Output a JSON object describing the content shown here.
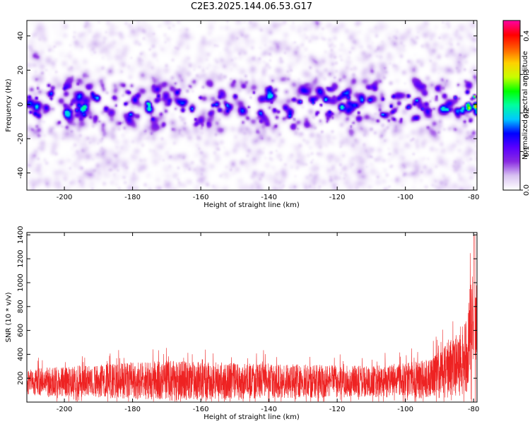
{
  "page_title": "C2E3.2025.144.06.53.G17",
  "colors": {
    "background": "#ffffff",
    "axis": "#000000",
    "snr_line": "#ee2222",
    "colormap": [
      "#ffffff",
      "#d9c2f2",
      "#8a2be2",
      "#5a00ff",
      "#0000ff",
      "#00c8ff",
      "#00ffa0",
      "#00ff00",
      "#c8ff00",
      "#ffd200",
      "#ff6000",
      "#ff0000",
      "#ff00a0"
    ]
  },
  "chart_data": [
    {
      "type": "heatmap",
      "title": "C2E3.2025.144.06.53.G17",
      "xlabel": "Height of straight line (km)",
      "ylabel": "Frequency (Hz)",
      "xlim": [
        -211,
        -79
      ],
      "ylim": [
        -50,
        49
      ],
      "xticks": [
        -200,
        -180,
        -160,
        -140,
        -120,
        -100,
        -80
      ],
      "yticks": [
        -40,
        -20,
        0,
        20,
        40
      ],
      "colorbar": {
        "label": "Normalized spectral amplitude",
        "range": [
          0,
          0.44
        ],
        "ticks": [
          "0.0",
          "0.1",
          "0.2",
          "0.3",
          "0.4"
        ]
      },
      "description_values": {
        "band_center_hz": 0,
        "band_half_width_hz": 8,
        "band_peak_amplitude": 0.12,
        "max_amplitude_near_km": -80,
        "max_amplitude": 0.4
      }
    },
    {
      "type": "line",
      "xlabel": "Height of straight line (km)",
      "ylabel": "SNR (10 * v/v)",
      "xlim": [
        -211,
        -79
      ],
      "ylim": [
        0,
        1420
      ],
      "xticks": [
        -200,
        -180,
        -160,
        -140,
        -120,
        -100,
        -80
      ],
      "yticks": [
        200,
        400,
        600,
        800,
        1000,
        1200,
        1400
      ],
      "series": [
        {
          "x_segments": [
            -211,
            -190,
            -170,
            -150,
            -130,
            -110,
            -95,
            -90,
            -85,
            -82,
            -80,
            -79
          ],
          "mean": [
            170,
            175,
            180,
            178,
            175,
            172,
            190,
            230,
            300,
            420,
            700,
            600
          ],
          "noise_amplitude": [
            110,
            140,
            170,
            150,
            140,
            130,
            160,
            200,
            260,
            340,
            500,
            400
          ],
          "max_value": 1400
        }
      ]
    }
  ]
}
